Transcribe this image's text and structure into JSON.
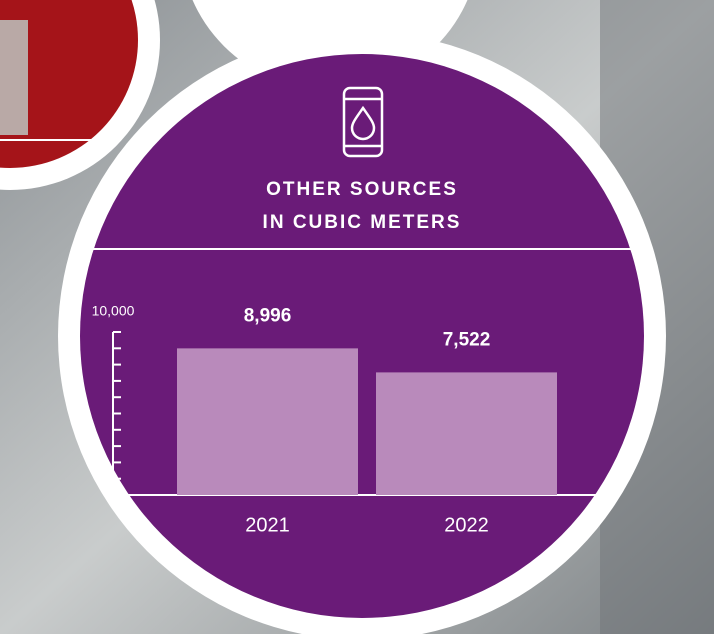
{
  "chart_data": {
    "type": "bar",
    "title": [
      "OTHER SOURCES",
      "IN CUBIC METERS"
    ],
    "categories": [
      "2021",
      "2022"
    ],
    "values": [
      8996,
      7522
    ],
    "value_labels": [
      "8,996",
      "7,522"
    ],
    "color": "#b98abb",
    "ylim": [
      0,
      10000
    ],
    "yticks": [
      {
        "value": 10000,
        "label": "10,000"
      }
    ],
    "yminor_ticks": [
      1000,
      2000,
      3000,
      4000,
      5000,
      6000,
      7000,
      8000,
      9000
    ],
    "grid": false
  }
}
